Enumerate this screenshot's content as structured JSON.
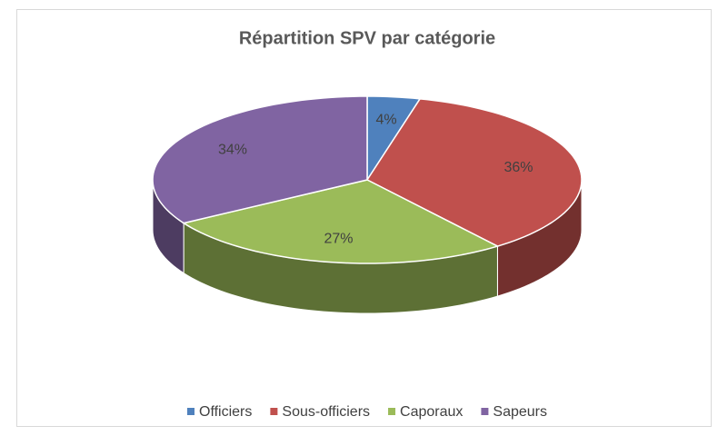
{
  "chart_data": {
    "type": "pie3d",
    "title": "Répartition SPV par catégorie",
    "categories": [
      "Officiers",
      "Sous-officiers",
      "Caporaux",
      "Sapeurs"
    ],
    "values": [
      4,
      36,
      27,
      34
    ],
    "value_labels": [
      "4%",
      "36%",
      "27%",
      "34%"
    ],
    "colors": [
      "#4f81bd",
      "#c0504d",
      "#9bbb59",
      "#8064a2"
    ],
    "legend": "bottom"
  }
}
